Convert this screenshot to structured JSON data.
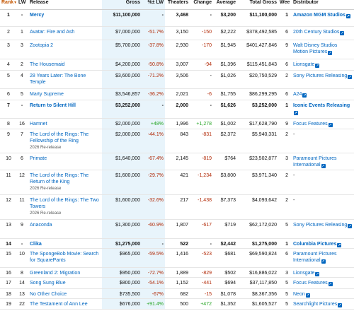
{
  "columns": {
    "rank": "Rank",
    "lw": "LW",
    "release": "Release",
    "gross": "Gross",
    "pct_lw": "%± LW",
    "theaters": "Theaters",
    "change": "Change",
    "average": "Average",
    "total_gross": "Total Gross",
    "weeks": "Weeks",
    "distributor": "Distributor"
  },
  "rows": [
    {
      "rank": "1",
      "lw": "-",
      "release": "Mercy",
      "gross": "$11,100,000",
      "pct": "-",
      "theaters": "3,468",
      "change": "-",
      "average": "$3,200",
      "total": "$11,100,000",
      "weeks": "1",
      "distributor": "Amazon MGM Studios",
      "h": 24,
      "bold": true
    },
    {
      "rank": "2",
      "lw": "1",
      "release": "Avatar: Fire and Ash",
      "gross": "$7,000,000",
      "pct": "-51.7%",
      "theaters": "3,150",
      "change": "-150",
      "average": "$2,222",
      "total": "$378,492,585",
      "weeks": "6",
      "distributor": "20th Century Studios",
      "h": 19
    },
    {
      "rank": "3",
      "lw": "3",
      "release": "Zootopia 2",
      "gross": "$5,700,000",
      "pct": "-37.8%",
      "theaters": "2,930",
      "change": "-170",
      "average": "$1,945",
      "total": "$401,427,846",
      "weeks": "9",
      "distributor": "Walt Disney Studios Motion Pictures",
      "h": 27
    },
    {
      "rank": "4",
      "lw": "2",
      "release": "The Housemaid",
      "gross": "$4,200,000",
      "pct": "-50.8%",
      "theaters": "3,007",
      "change": "-94",
      "average": "$1,396",
      "total": "$115,451,843",
      "weeks": "6",
      "distributor": "Lionsgate",
      "h": 16
    },
    {
      "rank": "5",
      "lw": "4",
      "release": "28 Years Later: The Bone Temple",
      "gross": "$3,600,000",
      "pct": "-71.2%",
      "theaters": "3,506",
      "change": "-",
      "average": "$1,026",
      "total": "$20,750,529",
      "weeks": "2",
      "distributor": "Sony Pictures Releasing",
      "h": 26
    },
    {
      "rank": "6",
      "lw": "5",
      "release": "Marty Supreme",
      "gross": "$3,546,857",
      "pct": "-36.2%",
      "theaters": "2,021",
      "change": "-6",
      "average": "$1,755",
      "total": "$86,299,295",
      "weeks": "6",
      "distributor": "A24",
      "h": 16
    },
    {
      "rank": "7",
      "lw": "-",
      "release": "Return to Silent Hill",
      "gross": "$3,252,000",
      "pct": "-",
      "theaters": "2,000",
      "change": "-",
      "average": "$1,626",
      "total": "$3,252,000",
      "weeks": "1",
      "distributor": "Iconic Events Releasing",
      "h": 26,
      "bold": true
    },
    {
      "rank": "8",
      "lw": "16",
      "release": "Hamnet",
      "gross": "$2,000,000",
      "pct": "+48%",
      "theaters": "1,996",
      "change": "+1,278",
      "average": "$1,002",
      "total": "$17,628,790",
      "weeks": "9",
      "distributor": "Focus Features",
      "h": 15
    },
    {
      "rank": "9",
      "lw": "7",
      "release": "The Lord of the Rings: The Fellowship of the Ring",
      "rerelease": "2026 Re-release",
      "gross": "$2,000,000",
      "pct": "-44.1%",
      "theaters": "843",
      "change": "-831",
      "average": "$2,372",
      "total": "$5,940,331",
      "weeks": "2",
      "distributor": "-",
      "h": 34
    },
    {
      "rank": "10",
      "lw": "6",
      "release": "Primate",
      "gross": "$1,640,000",
      "pct": "-67.4%",
      "theaters": "2,145",
      "change": "-819",
      "average": "$764",
      "total": "$23,502,877",
      "weeks": "3",
      "distributor": "Paramount Pictures International",
      "h": 24
    },
    {
      "rank": "11",
      "lw": "12",
      "release": "The Lord of the Rings: The Return of the King",
      "rerelease": "2026 Re-release",
      "gross": "$1,600,000",
      "pct": "-29.7%",
      "theaters": "421",
      "change": "-1,234",
      "average": "$3,800",
      "total": "$3,971,340",
      "weeks": "2",
      "distributor": "-",
      "h": 35
    },
    {
      "rank": "12",
      "lw": "11",
      "release": "The Lord of the Rings: The Two Towers",
      "rerelease": "2026 Re-release",
      "gross": "$1,600,000",
      "pct": "-32.6%",
      "theaters": "217",
      "change": "-1,438",
      "average": "$7,373",
      "total": "$4,093,642",
      "weeks": "2",
      "distributor": "-",
      "h": 35
    },
    {
      "rank": "13",
      "lw": "9",
      "release": "Anaconda",
      "gross": "$1,300,000",
      "pct": "-60.9%",
      "theaters": "1,807",
      "change": "-617",
      "average": "$719",
      "total": "$62,172,020",
      "weeks": "5",
      "distributor": "Sony Pictures Releasing",
      "h": 27
    },
    {
      "rank": "14",
      "lw": "-",
      "release": "Clika",
      "gross": "$1,275,000",
      "pct": "-",
      "theaters": "522",
      "change": "-",
      "average": "$2,442",
      "total": "$1,275,000",
      "weeks": "1",
      "distributor": "Columbia Pictures",
      "h": 14,
      "bold": true
    },
    {
      "rank": "15",
      "lw": "10",
      "release": "The SpongeBob Movie: Search for SquarePants",
      "gross": "$965,000",
      "pct": "-59.5%",
      "theaters": "1,416",
      "change": "-523",
      "average": "$681",
      "total": "$69,590,824",
      "weeks": "6",
      "distributor": "Paramount Pictures International",
      "h": 27
    },
    {
      "rank": "16",
      "lw": "8",
      "release": "Greenland 2: Migration",
      "gross": "$950,000",
      "pct": "-72.7%",
      "theaters": "1,889",
      "change": "-829",
      "average": "$502",
      "total": "$16,886,022",
      "weeks": "3",
      "distributor": "Lionsgate",
      "h": 14
    },
    {
      "rank": "17",
      "lw": "14",
      "release": "Song Sung Blue",
      "gross": "$800,000",
      "pct": "-54.1%",
      "theaters": "1,152",
      "change": "-441",
      "average": "$694",
      "total": "$37,117,850",
      "weeks": "5",
      "distributor": "Focus Features",
      "h": 16
    },
    {
      "rank": "18",
      "lw": "13",
      "release": "No Other Choice",
      "gross": "$735,500",
      "pct": "-67%",
      "theaters": "682",
      "change": "-15",
      "average": "$1,078",
      "total": "$8,367,356",
      "weeks": "5",
      "distributor": "Neon",
      "h": 14
    },
    {
      "rank": "19",
      "lw": "22",
      "release": "The Testament of Ann Lee",
      "gross": "$676,000",
      "pct": "+91.4%",
      "theaters": "500",
      "change": "+472",
      "average": "$1,352",
      "total": "$1,605,527",
      "weeks": "5",
      "distributor": "Searchlight Pictures",
      "h": 15
    }
  ]
}
